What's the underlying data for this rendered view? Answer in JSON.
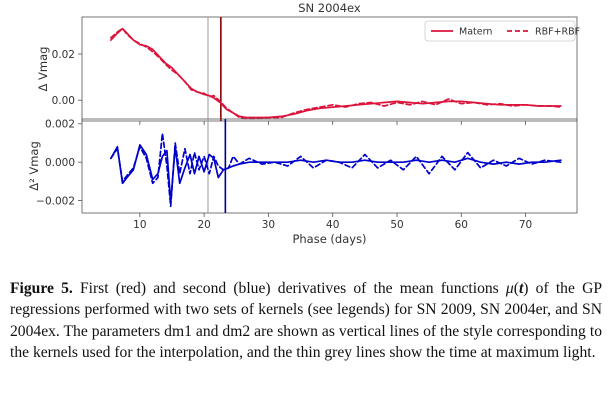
{
  "chart_data": [
    {
      "type": "line",
      "panel": "top",
      "title": "SN 2004ex",
      "ylabel": "Δ Vmag",
      "xlabel": "",
      "xlim": [
        1,
        78
      ],
      "ylim": [
        -0.009,
        0.036
      ],
      "yticks": [
        0.0,
        0.02
      ],
      "ytick_labels": [
        "0.00",
        "0.02"
      ],
      "xticks": [
        10,
        20,
        30,
        40,
        50,
        60,
        70
      ],
      "legend_position": "top-right",
      "grid": false,
      "color": "#dc143c",
      "vlines": [
        {
          "x": 20.6,
          "style": "thin-grey",
          "color": "#999999"
        },
        {
          "x": 22.6,
          "style": "solid",
          "color": "#8b0000"
        }
      ],
      "series": [
        {
          "name": "Matern",
          "style": "solid",
          "x": [
            5.5,
            6.5,
            7.3,
            8,
            9,
            10,
            11,
            12,
            13,
            14,
            15,
            16,
            17,
            18,
            19,
            20,
            20.8,
            21.5,
            22.5,
            23.5,
            24.5,
            25.5,
            26.5,
            28,
            30,
            32,
            34,
            36,
            38,
            40,
            42,
            44,
            46,
            48,
            50,
            52,
            54,
            56,
            58,
            60,
            62,
            64,
            66,
            68,
            70,
            72,
            74,
            75.5
          ],
          "y": [
            0.026,
            0.029,
            0.031,
            0.029,
            0.026,
            0.024,
            0.0235,
            0.022,
            0.019,
            0.016,
            0.014,
            0.011,
            0.008,
            0.005,
            0.0035,
            0.0025,
            0.002,
            0.001,
            -0.001,
            -0.004,
            -0.0055,
            -0.007,
            -0.0075,
            -0.0075,
            -0.0075,
            -0.007,
            -0.006,
            -0.0045,
            -0.0035,
            -0.003,
            -0.0025,
            -0.002,
            -0.0015,
            -0.001,
            -0.0005,
            -0.001,
            -0.0015,
            -0.001,
            -0.0005,
            -0.0005,
            -0.001,
            -0.0015,
            -0.002,
            -0.002,
            -0.002,
            -0.0025,
            -0.0025,
            -0.0025
          ]
        },
        {
          "name": "RBF+RBF",
          "style": "dashed",
          "x": [
            5.5,
            6.5,
            7.3,
            8,
            9,
            10,
            11,
            12,
            13,
            14,
            15,
            16,
            17,
            18,
            19,
            20,
            20.8,
            21.5,
            22.5,
            23.5,
            24.5,
            25.5,
            26.5,
            28,
            30,
            32,
            34,
            36,
            38,
            40,
            42,
            44,
            46,
            48,
            50,
            52,
            54,
            56,
            58,
            60,
            62,
            64,
            66,
            68,
            70,
            72,
            74,
            75.5
          ],
          "y": [
            0.027,
            0.0295,
            0.031,
            0.0285,
            0.026,
            0.0245,
            0.023,
            0.021,
            0.0185,
            0.0155,
            0.013,
            0.011,
            0.008,
            0.0045,
            0.0035,
            0.003,
            0.0015,
            0.002,
            -0.0005,
            -0.0035,
            -0.0055,
            -0.0075,
            -0.008,
            -0.008,
            -0.0075,
            -0.0075,
            -0.0055,
            -0.004,
            -0.003,
            -0.002,
            -0.003,
            -0.0015,
            -0.001,
            -0.0025,
            -0.001,
            -0.002,
            -0.0005,
            -0.002,
            0.0005,
            -0.0015,
            -0.001,
            -0.002,
            -0.0015,
            -0.0025,
            -0.002,
            -0.0025,
            -0.0025,
            -0.003
          ]
        }
      ]
    },
    {
      "type": "line",
      "panel": "bottom",
      "title": "",
      "ylabel": "Δ² Vmag",
      "xlabel": "Phase (days)",
      "xlim": [
        1,
        78
      ],
      "ylim": [
        -0.00265,
        0.00225
      ],
      "yticks": [
        -0.002,
        0.0,
        0.002
      ],
      "ytick_labels": [
        "−0.002",
        "0.000",
        "0.002"
      ],
      "xticks": [
        10,
        20,
        30,
        40,
        50,
        60,
        70
      ],
      "xtick_labels": [
        "10",
        "20",
        "30",
        "40",
        "50",
        "60",
        "70"
      ],
      "grid": false,
      "color": "#0000cd",
      "vlines": [
        {
          "x": 20.6,
          "style": "thin-grey",
          "color": "#999999"
        },
        {
          "x": 23.3,
          "style": "solid",
          "color": "#00008b"
        }
      ],
      "series": [
        {
          "name": "Matern",
          "style": "solid",
          "x": [
            5.5,
            6.5,
            7.3,
            8,
            9,
            10,
            11,
            12,
            12.8,
            13.5,
            14.2,
            14.8,
            15.5,
            16.2,
            17,
            17.8,
            18.5,
            19.2,
            20,
            20.8,
            21.5,
            22.2,
            23,
            23.8,
            24.5,
            25.5,
            27,
            29,
            31,
            33,
            35,
            37,
            39,
            41,
            43,
            45,
            47,
            49,
            51,
            53,
            55,
            57,
            59,
            61,
            63,
            65,
            67,
            69,
            71,
            73,
            75.5
          ],
          "y": [
            0.0002,
            0.0008,
            -0.0011,
            -0.0008,
            -0.0004,
            0.0009,
            0.0004,
            -0.0009,
            -0.0006,
            0.0003,
            0.0006,
            -0.0021,
            0.0008,
            -0.0011,
            -0.0003,
            0.0004,
            -0.0006,
            0.0003,
            -0.0005,
            0.0004,
            0.0002,
            -0.0008,
            -0.0004,
            -0.0003,
            -0.0002,
            -0.0001,
            0.0,
            0.0,
            0.0,
            0.0,
            0.0001,
            0.0,
            0.0001,
            0.0,
            0.0,
            0.0001,
            0.0,
            0.0,
            0.0,
            0.0001,
            0.0,
            0.0001,
            0.0,
            0.0002,
            0.0,
            -0.0001,
            0.0,
            -0.0001,
            0.0,
            0.0,
            0.0001
          ]
        },
        {
          "name": "RBF+RBF",
          "style": "dashed",
          "x": [
            5.5,
            6.5,
            7.3,
            8,
            9,
            10,
            11,
            12,
            12.8,
            13.5,
            14.2,
            14.8,
            15.5,
            16.2,
            17,
            17.8,
            18.5,
            19.2,
            20,
            20.8,
            21.5,
            22.2,
            23,
            23.8,
            24.5,
            25.5,
            27,
            29,
            31,
            33,
            35,
            37,
            39,
            41,
            43,
            45,
            47,
            49,
            51,
            53,
            55,
            57,
            59,
            61,
            63,
            65,
            67,
            69,
            71,
            73,
            75.5
          ],
          "y": [
            0.0002,
            0.0007,
            -0.001,
            -0.0007,
            -0.0003,
            0.0008,
            0.0002,
            -0.0011,
            -0.0008,
            0.0015,
            -0.0002,
            -0.0023,
            0.001,
            -0.0006,
            0.0007,
            -0.0006,
            0.0005,
            -0.0004,
            0.0003,
            -0.0006,
            0.0003,
            -0.0002,
            -0.0004,
            -0.0003,
            0.0003,
            -0.0001,
            0.0002,
            -0.0001,
            0.0,
            -0.0002,
            0.0003,
            -0.0003,
            0.0001,
            0.0,
            -0.0003,
            0.0004,
            -0.0003,
            0.0001,
            -0.0004,
            0.0003,
            -0.0006,
            0.0003,
            -0.0004,
            0.0005,
            -0.0003,
            0.0001,
            -0.0002,
            0.0002,
            -0.0001,
            0.0001,
            0.0
          ]
        }
      ]
    }
  ],
  "caption": {
    "label": "Figure 5.",
    "text_before_mu": " First (red) and second (blue) derivatives of the mean functions ",
    "mu": "μ",
    "paren_open": "(",
    "t": "t",
    "paren_close": ")",
    "text_after_mu": " of the GP regressions performed with two sets of kernels (see legends) for SN 2009, SN 2004er, and SN 2004ex. The parameters dm1 and dm2 are shown as vertical lines of the style corresponding to the kernels used for the interpolation, and the thin grey lines show the time at maximum light."
  }
}
